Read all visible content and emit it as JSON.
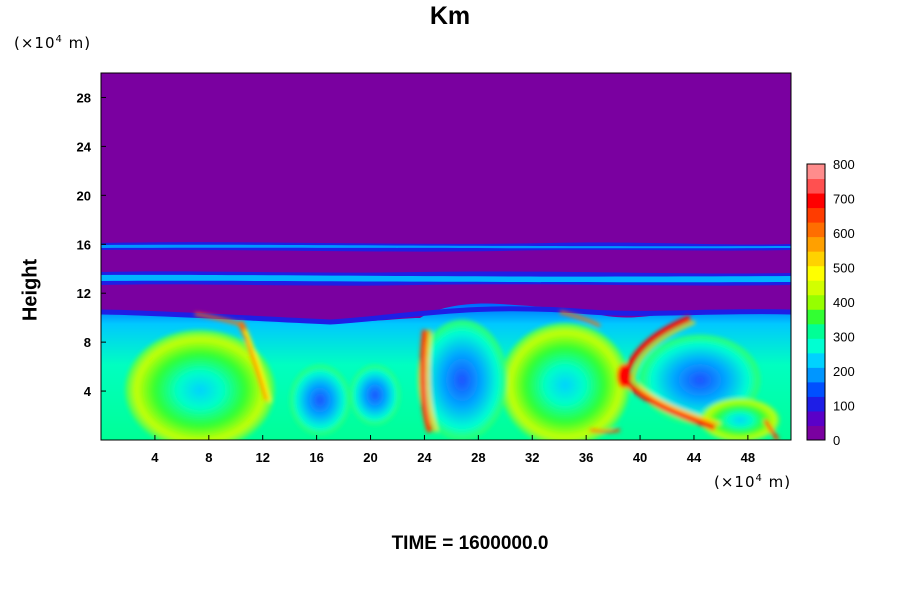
{
  "chart_data": {
    "type": "heatmap",
    "title": "Km",
    "ylabel": "Height",
    "xlabel": "",
    "y_unit": {
      "prefix": "(×10",
      "exp": "4",
      "suffix": " m)"
    },
    "x_unit": {
      "prefix": "(×10",
      "exp": "4",
      "suffix": " m)"
    },
    "xlim": [
      0,
      51.2
    ],
    "ylim": [
      0,
      30
    ],
    "x_ticks": [
      "4",
      "8",
      "12",
      "16",
      "20",
      "24",
      "28",
      "32",
      "36",
      "40",
      "44",
      "48"
    ],
    "x_tick_values": [
      4,
      8,
      12,
      16,
      20,
      24,
      28,
      32,
      36,
      40,
      44,
      48
    ],
    "y_ticks": [
      "4",
      "8",
      "12",
      "16",
      "20",
      "24",
      "28"
    ],
    "y_tick_values": [
      4,
      8,
      12,
      16,
      20,
      24,
      28
    ],
    "colorbar": {
      "min": 0,
      "max": 800,
      "ticks": [
        "0",
        "100",
        "200",
        "300",
        "400",
        "500",
        "600",
        "700",
        "800"
      ],
      "tick_values": [
        0,
        100,
        200,
        300,
        400,
        500,
        600,
        700,
        800
      ],
      "colors": [
        "#7a00a0",
        "#5a00c8",
        "#1e1ee6",
        "#0050ff",
        "#0096ff",
        "#00d2ff",
        "#00ffd2",
        "#00ff96",
        "#32ff32",
        "#96ff00",
        "#d2ff00",
        "#ffff00",
        "#ffd200",
        "#ffa000",
        "#ff6e00",
        "#ff3c00",
        "#ff0000",
        "#ff5050",
        "#ff8c8c"
      ]
    },
    "footer": "TIME = 1600000.0",
    "background_color": "#7a00a0"
  }
}
